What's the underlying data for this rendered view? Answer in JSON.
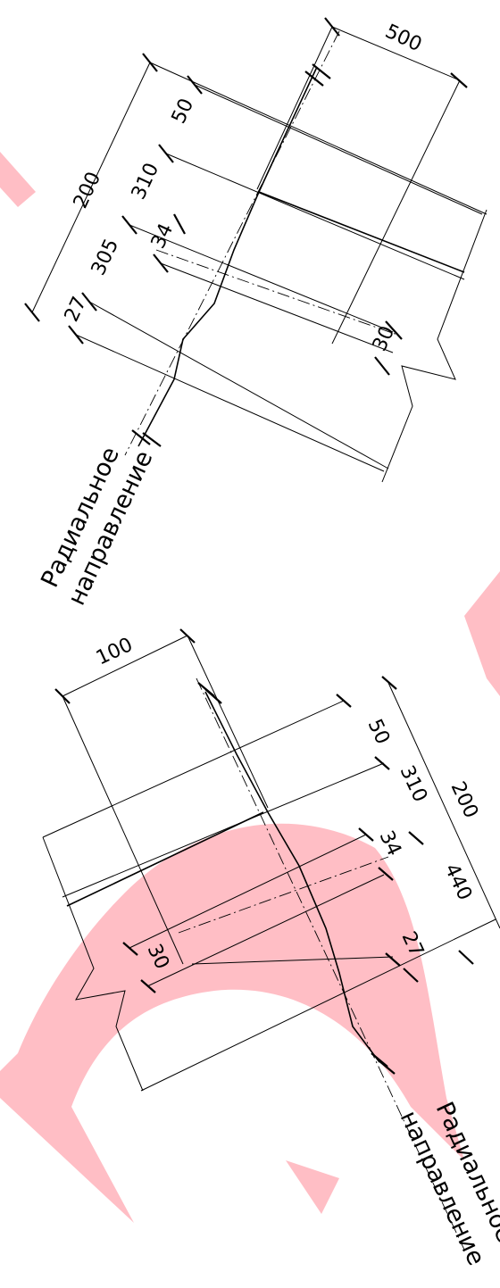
{
  "watermark": {
    "color": "#ffb3bb"
  },
  "upper_drawing": {
    "dims": {
      "top": "500",
      "left_total": "200",
      "left_1": "50",
      "left_2": "310",
      "left_3": "305",
      "left_4": "34",
      "left_5": "27",
      "right_small": "30"
    },
    "direction_label_1": "Радиальное",
    "direction_label_2": "направление"
  },
  "lower_drawing": {
    "dims": {
      "top": "100",
      "r1": "50",
      "r2": "310",
      "r_total": "200",
      "r3": "34",
      "r4": "440",
      "r5": "27",
      "left_small": "30"
    },
    "direction_label_1": "Радиальное",
    "direction_label_2": "направление"
  }
}
